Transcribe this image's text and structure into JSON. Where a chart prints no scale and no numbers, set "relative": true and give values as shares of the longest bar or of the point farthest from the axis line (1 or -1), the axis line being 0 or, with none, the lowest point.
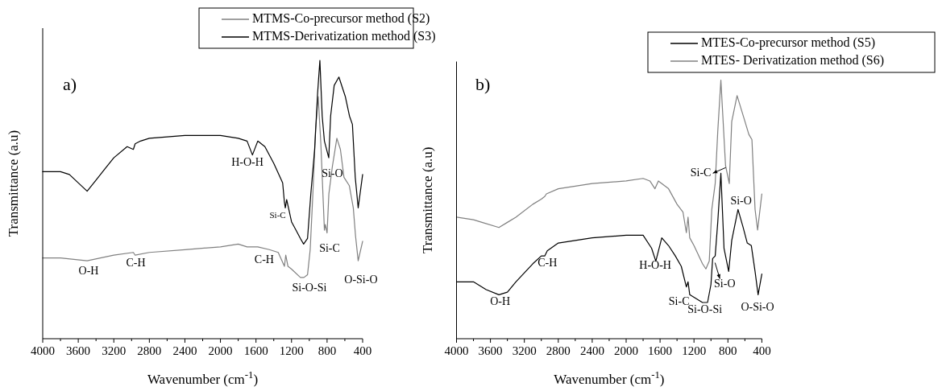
{
  "chart_data": [
    {
      "type": "line",
      "title": "a)",
      "xlabel": "Wavenumber (cm$^{-1}$)",
      "ylabel": "Transmittance (a.u)",
      "relative": true,
      "legend": "top right",
      "grid": false,
      "xlim": [
        4000,
        400
      ],
      "xticks": [
        4000,
        {
          "value": 3800,
          "label": null
        },
        3600,
        {
          "value": 3400,
          "label": null
        },
        3200,
        {
          "value": 3000,
          "label": null
        },
        2800,
        {
          "value": 2600,
          "label": null
        },
        2400,
        {
          "value": 2200,
          "label": null
        },
        2000,
        {
          "value": 1800,
          "label": null
        },
        1600,
        {
          "value": 1400,
          "label": null
        },
        1200,
        {
          "value": 1000,
          "label": null
        },
        800,
        {
          "value": 600,
          "label": null
        },
        400
      ],
      "series": [
        {
          "name": "MTMS-Co-precursor method (S2)",
          "color": "#808080",
          "x": [
            4000,
            3800,
            3500,
            3200,
            2980,
            2960,
            2800,
            2400,
            2000,
            1800,
            1700,
            1640,
            1580,
            1450,
            1350,
            1280,
            1265,
            1240,
            1200,
            1100,
            1060,
            1020,
            990,
            960,
            930,
            900,
            870,
            830,
            820,
            800,
            780,
            740,
            690,
            650,
            610,
            550,
            505,
            480,
            450,
            400
          ],
          "values": [
            0.29,
            0.29,
            0.28,
            0.3,
            0.31,
            0.3,
            0.31,
            0.32,
            0.33,
            0.34,
            0.33,
            0.33,
            0.33,
            0.32,
            0.31,
            0.26,
            0.3,
            0.26,
            0.25,
            0.22,
            0.22,
            0.23,
            0.32,
            0.52,
            0.75,
            0.87,
            0.7,
            0.39,
            0.41,
            0.38,
            0.52,
            0.62,
            0.72,
            0.68,
            0.58,
            0.55,
            0.47,
            0.37,
            0.28,
            0.35
          ]
        },
        {
          "name": "MTMS-Derivatization method (S3)",
          "color": "#000000",
          "x": [
            4000,
            3800,
            3700,
            3500,
            3400,
            3300,
            3200,
            3050,
            2980,
            2960,
            2900,
            2800,
            2400,
            2000,
            1800,
            1700,
            1640,
            1580,
            1500,
            1400,
            1300,
            1280,
            1270,
            1255,
            1200,
            1150,
            1100,
            1064,
            1020,
            983,
            940,
            907,
            881,
            855,
            830,
            781,
            760,
            720,
            667,
            595,
            548,
            515,
            483,
            450,
            400
          ],
          "values": [
            0.6,
            0.6,
            0.59,
            0.53,
            0.57,
            0.61,
            0.65,
            0.69,
            0.68,
            0.7,
            0.71,
            0.72,
            0.73,
            0.73,
            0.72,
            0.71,
            0.66,
            0.71,
            0.69,
            0.63,
            0.56,
            0.49,
            0.47,
            0.5,
            0.42,
            0.39,
            0.36,
            0.34,
            0.36,
            0.52,
            0.68,
            0.88,
            1.0,
            0.8,
            0.71,
            0.65,
            0.8,
            0.91,
            0.94,
            0.87,
            0.8,
            0.77,
            0.58,
            0.47,
            0.59
          ]
        }
      ],
      "annotations": [
        "H-O-H",
        "Si-O",
        "Si-C",
        "Si-C",
        "O-Si-O",
        "Si-O-Si",
        "C-H",
        "C-H",
        "O-H"
      ]
    },
    {
      "type": "line",
      "title": "b)",
      "xlabel": "Wavenumber (cm$^{-1}$)",
      "ylabel": "Transmittance (a.u)",
      "relative": true,
      "legend": "top right",
      "grid": false,
      "xlim": [
        4000,
        400
      ],
      "xticks": [
        4000,
        {
          "value": 3800,
          "label": null
        },
        3600,
        {
          "value": 3400,
          "label": null
        },
        3200,
        {
          "value": 3000,
          "label": null
        },
        2800,
        {
          "value": 2600,
          "label": null
        },
        2400,
        {
          "value": 2200,
          "label": null
        },
        2000,
        {
          "value": 1800,
          "label": null
        },
        1600,
        {
          "value": 1400,
          "label": null
        },
        1200,
        {
          "value": 1000,
          "label": null
        },
        800,
        {
          "value": 600,
          "label": null
        },
        400
      ],
      "series": [
        {
          "name": "MTES-Co-precursor method (S5)",
          "color": "#000000",
          "x": [
            4000,
            3800,
            3650,
            3500,
            3400,
            3300,
            3100,
            3000,
            2960,
            2930,
            2800,
            2400,
            2000,
            1900,
            1800,
            1700,
            1650,
            1580,
            1500,
            1420,
            1350,
            1290,
            1270,
            1250,
            1200,
            1100,
            1040,
            1000,
            980,
            950,
            920,
            883,
            846,
            791,
            755,
            681,
            620,
            572,
            524,
            480,
            444,
            400
          ],
          "values": [
            0.22,
            0.22,
            0.19,
            0.17,
            0.18,
            0.22,
            0.29,
            0.32,
            0.32,
            0.34,
            0.37,
            0.39,
            0.4,
            0.4,
            0.4,
            0.35,
            0.3,
            0.39,
            0.36,
            0.32,
            0.28,
            0.2,
            0.22,
            0.17,
            0.16,
            0.14,
            0.14,
            0.21,
            0.31,
            0.32,
            0.45,
            0.64,
            0.35,
            0.26,
            0.38,
            0.5,
            0.43,
            0.37,
            0.36,
            0.26,
            0.17,
            0.25
          ]
        },
        {
          "name": "MTES- Derivatization method (S6)",
          "color": "#808080",
          "x": [
            4000,
            3800,
            3700,
            3500,
            3400,
            3300,
            3100,
            3000,
            2960,
            2940,
            2800,
            2400,
            2000,
            1800,
            1720,
            1660,
            1620,
            1500,
            1400,
            1330,
            1290,
            1270,
            1250,
            1200,
            1100,
            1060,
            1020,
            990,
            950,
            920,
            883,
            828,
            784,
            755,
            692,
            608,
            553,
            517,
            480,
            450,
            400
          ],
          "values": [
            0.47,
            0.46,
            0.45,
            0.43,
            0.45,
            0.47,
            0.52,
            0.54,
            0.55,
            0.56,
            0.58,
            0.6,
            0.61,
            0.62,
            0.61,
            0.58,
            0.61,
            0.58,
            0.52,
            0.49,
            0.41,
            0.47,
            0.39,
            0.36,
            0.29,
            0.27,
            0.3,
            0.5,
            0.6,
            0.8,
            1.0,
            0.67,
            0.6,
            0.84,
            0.94,
            0.85,
            0.79,
            0.77,
            0.5,
            0.42,
            0.56
          ]
        }
      ],
      "annotations": [
        "Si-C",
        "Si-O",
        "Si-O",
        "C-H",
        "H-O-H",
        "O-H",
        "Si-C",
        "Si-O-Si",
        "O-Si-O"
      ]
    }
  ]
}
